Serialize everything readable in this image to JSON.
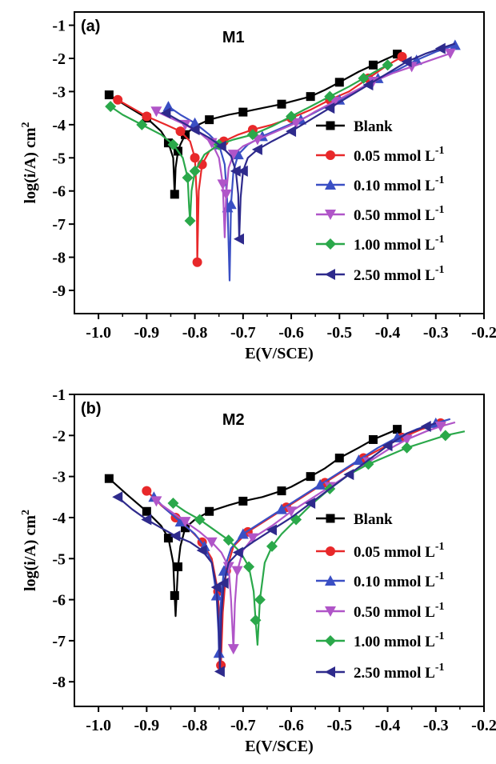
{
  "colors": [
    "#000000",
    "#e8282a",
    "#3a4fc4",
    "#b055c8",
    "#2aa84a",
    "#2e2a8c"
  ],
  "markers": [
    "square",
    "circle",
    "triangle-up",
    "triangle-down",
    "diamond",
    "triangle-left"
  ],
  "chart_data": [
    {
      "type": "line",
      "panel_label": "(a)",
      "title": "M1",
      "xlabel": "E(V/SCE)",
      "ylabel": "log(i/A) cm",
      "ylabel_sup": "2",
      "xlim": [
        -1.05,
        -0.2
      ],
      "ylim": [
        -9.7,
        -0.6
      ],
      "x_ticks": [
        -1.0,
        -0.9,
        -0.8,
        -0.7,
        -0.6,
        -0.5,
        -0.4,
        -0.3,
        -0.2
      ],
      "x_tick_labels": [
        "-1.0",
        "-0.9",
        "-0.8",
        "-0.7",
        "-0.6",
        "-0.5",
        "-0.4",
        "-0.3",
        "-0.2"
      ],
      "y_ticks": [
        -9,
        -8,
        -7,
        -6,
        -5,
        -4,
        -3,
        -2,
        -1
      ],
      "y_tick_labels": [
        "-9",
        "-8",
        "-7",
        "-6",
        "-5",
        "-4",
        "-3",
        "-2",
        "-1"
      ],
      "grid": false,
      "legend_position": "right",
      "series": [
        {
          "name": "Blank",
          "unit": "",
          "x": [
            -0.978,
            -0.94,
            -0.9,
            -0.87,
            -0.855,
            -0.845,
            -0.842,
            -0.84,
            -0.835,
            -0.83,
            -0.82,
            -0.8,
            -0.77,
            -0.73,
            -0.7,
            -0.66,
            -0.62,
            -0.6,
            -0.56,
            -0.53,
            -0.5,
            -0.46,
            -0.43,
            -0.4,
            -0.38
          ],
          "y": [
            -3.1,
            -3.45,
            -3.8,
            -4.2,
            -4.55,
            -5.0,
            -6.1,
            -5.3,
            -4.8,
            -4.6,
            -4.3,
            -4.05,
            -3.85,
            -3.7,
            -3.62,
            -3.5,
            -3.38,
            -3.3,
            -3.15,
            -2.95,
            -2.72,
            -2.4,
            -2.2,
            -2.0,
            -1.87
          ]
        },
        {
          "name": "0.05 mmol L",
          "unit": "-1",
          "x": [
            -0.96,
            -0.93,
            -0.9,
            -0.86,
            -0.83,
            -0.81,
            -0.8,
            -0.796,
            -0.795,
            -0.792,
            -0.785,
            -0.77,
            -0.74,
            -0.71,
            -0.68,
            -0.64,
            -0.6,
            -0.56,
            -0.52,
            -0.48,
            -0.44,
            -0.4,
            -0.37
          ],
          "y": [
            -3.25,
            -3.5,
            -3.75,
            -4.0,
            -4.2,
            -4.5,
            -5.0,
            -6.2,
            -8.15,
            -6.0,
            -5.2,
            -4.8,
            -4.5,
            -4.3,
            -4.15,
            -4.0,
            -3.8,
            -3.55,
            -3.25,
            -3.0,
            -2.6,
            -2.2,
            -1.95
          ]
        },
        {
          "name": "0.10 mmol L",
          "unit": "-1",
          "x": [
            -0.855,
            -0.83,
            -0.8,
            -0.77,
            -0.75,
            -0.738,
            -0.732,
            -0.728,
            -0.725,
            -0.72,
            -0.71,
            -0.69,
            -0.66,
            -0.62,
            -0.58,
            -0.54,
            -0.5,
            -0.46,
            -0.42,
            -0.38,
            -0.34,
            -0.3,
            -0.26
          ],
          "y": [
            -3.45,
            -3.7,
            -3.95,
            -4.3,
            -4.6,
            -5.2,
            -6.5,
            -8.7,
            -6.4,
            -5.4,
            -4.9,
            -4.6,
            -4.35,
            -4.1,
            -3.85,
            -3.55,
            -3.25,
            -2.95,
            -2.6,
            -2.35,
            -2.05,
            -1.8,
            -1.6
          ]
        },
        {
          "name": "0.50 mmol L",
          "unit": "-1",
          "x": [
            -0.88,
            -0.85,
            -0.82,
            -0.79,
            -0.765,
            -0.75,
            -0.742,
            -0.738,
            -0.735,
            -0.73,
            -0.72,
            -0.7,
            -0.67,
            -0.63,
            -0.59,
            -0.55,
            -0.51,
            -0.47,
            -0.43,
            -0.39,
            -0.35,
            -0.31,
            -0.27
          ],
          "y": [
            -3.6,
            -3.8,
            -4.0,
            -4.25,
            -4.55,
            -5.0,
            -5.8,
            -7.4,
            -6.1,
            -5.3,
            -4.9,
            -4.65,
            -4.45,
            -4.2,
            -3.95,
            -3.6,
            -3.3,
            -3.0,
            -2.7,
            -2.45,
            -2.25,
            -2.05,
            -1.85
          ]
        },
        {
          "name": "1.00 mmol L",
          "unit": "-1",
          "x": [
            -0.975,
            -0.95,
            -0.91,
            -0.87,
            -0.845,
            -0.825,
            -0.815,
            -0.812,
            -0.81,
            -0.807,
            -0.8,
            -0.78,
            -0.75,
            -0.72,
            -0.68,
            -0.64,
            -0.6,
            -0.56,
            -0.52,
            -0.48,
            -0.45,
            -0.42,
            -0.4
          ],
          "y": [
            -3.45,
            -3.7,
            -4.0,
            -4.3,
            -4.6,
            -5.0,
            -5.6,
            -6.5,
            -6.9,
            -6.0,
            -5.4,
            -4.9,
            -4.6,
            -4.45,
            -4.3,
            -4.05,
            -3.75,
            -3.45,
            -3.15,
            -2.85,
            -2.6,
            -2.35,
            -2.2
          ]
        },
        {
          "name": "2.50 mmol L",
          "unit": "-1",
          "x": [
            -0.86,
            -0.83,
            -0.8,
            -0.77,
            -0.745,
            -0.725,
            -0.715,
            -0.71,
            -0.708,
            -0.705,
            -0.7,
            -0.69,
            -0.67,
            -0.64,
            -0.6,
            -0.56,
            -0.52,
            -0.48,
            -0.44,
            -0.4,
            -0.36,
            -0.32,
            -0.29,
            -0.26
          ],
          "y": [
            -3.65,
            -3.9,
            -4.15,
            -4.4,
            -4.65,
            -4.95,
            -5.4,
            -6.1,
            -7.45,
            -6.2,
            -5.4,
            -5.0,
            -4.75,
            -4.5,
            -4.2,
            -3.85,
            -3.5,
            -3.15,
            -2.8,
            -2.45,
            -2.1,
            -1.85,
            -1.7,
            -1.55
          ]
        }
      ]
    },
    {
      "type": "line",
      "panel_label": "(b)",
      "title": "M2",
      "xlabel": "E(V/SCE)",
      "ylabel": "log(i/A) cm",
      "ylabel_sup": "2",
      "xlim": [
        -1.05,
        -0.2
      ],
      "ylim": [
        -8.6,
        -1.0
      ],
      "x_ticks": [
        -1.0,
        -0.9,
        -0.8,
        -0.7,
        -0.6,
        -0.5,
        -0.4,
        -0.3,
        -0.2
      ],
      "x_tick_labels": [
        "-1.0",
        "-0.9",
        "-0.8",
        "-0.7",
        "-0.6",
        "-0.5",
        "-0.4",
        "-0.3",
        "-0.2"
      ],
      "y_ticks": [
        -8,
        -7,
        -6,
        -5,
        -4,
        -3,
        -2,
        -1
      ],
      "y_tick_labels": [
        "-8",
        "-7",
        "-6",
        "-5",
        "-4",
        "-3",
        "-2",
        "-1"
      ],
      "grid": false,
      "legend_position": "right",
      "series": [
        {
          "name": "Blank",
          "unit": "",
          "x": [
            -0.978,
            -0.94,
            -0.9,
            -0.87,
            -0.855,
            -0.845,
            -0.842,
            -0.84,
            -0.835,
            -0.83,
            -0.82,
            -0.8,
            -0.77,
            -0.73,
            -0.7,
            -0.66,
            -0.62,
            -0.6,
            -0.56,
            -0.53,
            -0.5,
            -0.46,
            -0.43,
            -0.4,
            -0.38
          ],
          "y": [
            -3.05,
            -3.45,
            -3.85,
            -4.2,
            -4.5,
            -5.1,
            -5.9,
            -6.4,
            -5.2,
            -4.7,
            -4.25,
            -4.05,
            -3.85,
            -3.7,
            -3.6,
            -3.5,
            -3.35,
            -3.25,
            -3.0,
            -2.8,
            -2.55,
            -2.3,
            -2.1,
            -1.95,
            -1.85
          ]
        },
        {
          "name": "0.05 mmol L",
          "unit": "-1",
          "x": [
            -0.9,
            -0.87,
            -0.84,
            -0.81,
            -0.785,
            -0.765,
            -0.752,
            -0.748,
            -0.746,
            -0.742,
            -0.735,
            -0.72,
            -0.69,
            -0.65,
            -0.61,
            -0.57,
            -0.53,
            -0.49,
            -0.45,
            -0.41,
            -0.37,
            -0.33,
            -0.29
          ],
          "y": [
            -3.35,
            -3.7,
            -4.0,
            -4.3,
            -4.6,
            -5.0,
            -5.8,
            -7.0,
            -7.6,
            -6.3,
            -5.3,
            -4.7,
            -4.35,
            -4.05,
            -3.75,
            -3.45,
            -3.15,
            -2.85,
            -2.55,
            -2.3,
            -2.05,
            -1.85,
            -1.7
          ]
        },
        {
          "name": "0.10 mmol L",
          "unit": "-1",
          "x": [
            -0.885,
            -0.86,
            -0.83,
            -0.8,
            -0.78,
            -0.765,
            -0.755,
            -0.751,
            -0.75,
            -0.747,
            -0.74,
            -0.725,
            -0.7,
            -0.66,
            -0.62,
            -0.58,
            -0.54,
            -0.5,
            -0.46,
            -0.42,
            -0.38,
            -0.34,
            -0.3,
            -0.27
          ],
          "y": [
            -3.5,
            -3.8,
            -4.1,
            -4.4,
            -4.7,
            -5.1,
            -5.9,
            -6.8,
            -7.3,
            -6.2,
            -5.3,
            -4.75,
            -4.4,
            -4.1,
            -3.8,
            -3.5,
            -3.2,
            -2.9,
            -2.6,
            -2.3,
            -2.05,
            -1.85,
            -1.7,
            -1.6
          ]
        },
        {
          "name": "0.50 mmol L",
          "unit": "-1",
          "x": [
            -0.88,
            -0.85,
            -0.82,
            -0.79,
            -0.765,
            -0.745,
            -0.73,
            -0.725,
            -0.72,
            -0.717,
            -0.712,
            -0.7,
            -0.68,
            -0.64,
            -0.6,
            -0.56,
            -0.52,
            -0.48,
            -0.44,
            -0.4,
            -0.36,
            -0.32,
            -0.29,
            -0.26
          ],
          "y": [
            -3.6,
            -3.85,
            -4.1,
            -4.35,
            -4.6,
            -4.85,
            -5.2,
            -6.0,
            -7.2,
            -6.1,
            -5.3,
            -4.8,
            -4.5,
            -4.2,
            -3.85,
            -3.55,
            -3.25,
            -2.95,
            -2.65,
            -2.35,
            -2.1,
            -1.9,
            -1.78,
            -1.68
          ]
        },
        {
          "name": "1.00 mmol L",
          "unit": "-1",
          "x": [
            -0.845,
            -0.82,
            -0.79,
            -0.76,
            -0.73,
            -0.705,
            -0.688,
            -0.678,
            -0.674,
            -0.67,
            -0.665,
            -0.655,
            -0.64,
            -0.62,
            -0.59,
            -0.56,
            -0.52,
            -0.48,
            -0.44,
            -0.4,
            -0.36,
            -0.32,
            -0.28,
            -0.24
          ],
          "y": [
            -3.65,
            -3.85,
            -4.05,
            -4.3,
            -4.55,
            -4.85,
            -5.2,
            -5.8,
            -6.5,
            -7.1,
            -6.0,
            -5.1,
            -4.7,
            -4.4,
            -4.05,
            -3.7,
            -3.3,
            -2.95,
            -2.7,
            -2.5,
            -2.3,
            -2.15,
            -2.0,
            -1.9
          ]
        },
        {
          "name": "2.50 mmol L",
          "unit": "-1",
          "x": [
            -0.96,
            -0.93,
            -0.9,
            -0.87,
            -0.84,
            -0.81,
            -0.785,
            -0.765,
            -0.755,
            -0.75,
            -0.748,
            -0.745,
            -0.74,
            -0.73,
            -0.71,
            -0.68,
            -0.64,
            -0.6,
            -0.56,
            -0.52,
            -0.48,
            -0.44,
            -0.4,
            -0.36,
            -0.32,
            -0.3
          ],
          "y": [
            -3.5,
            -3.8,
            -4.05,
            -4.25,
            -4.45,
            -4.6,
            -4.8,
            -5.1,
            -5.7,
            -6.8,
            -7.75,
            -6.4,
            -5.6,
            -5.1,
            -4.85,
            -4.6,
            -4.3,
            -4.0,
            -3.65,
            -3.3,
            -2.95,
            -2.6,
            -2.25,
            -1.95,
            -1.78,
            -1.7
          ]
        }
      ]
    }
  ]
}
